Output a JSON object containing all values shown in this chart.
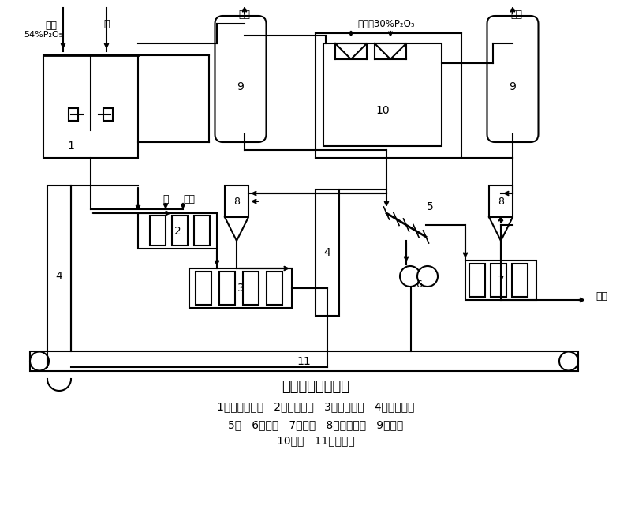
{
  "title": "磷酸二铵生产流程",
  "subtitle_line1": "1预中和反应器   2转鼓造粒机   3回转干燥机   4斗式提升机",
  "subtitle_line2": "5筛   6破碎机   7冷却机   8旋风分离器   9洗涤塔",
  "subtitle_line3": "10贮槽   11传送装置",
  "bg_color": "#ffffff",
  "line_color": "#000000",
  "lw": 1.5
}
